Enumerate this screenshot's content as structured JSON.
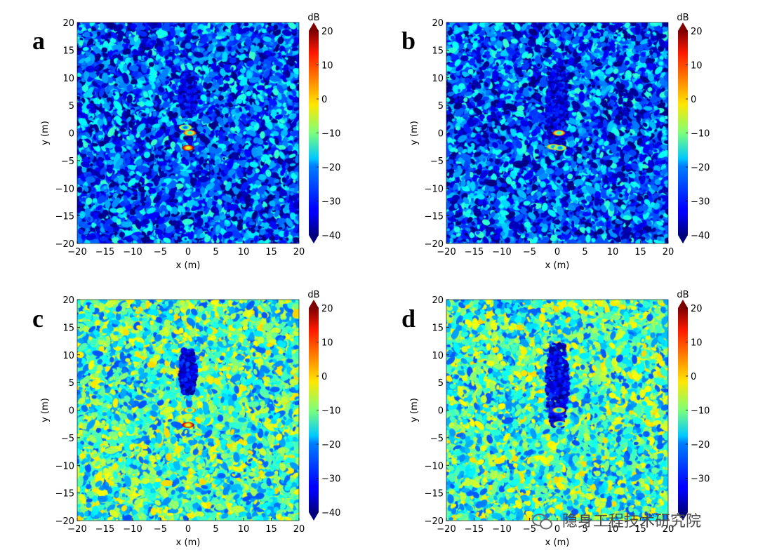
{
  "watermark": {
    "text": "隐身工程技术研究院",
    "icon": "wechat-icon"
  },
  "chart_data": [
    {
      "panel": "a",
      "type": "heatmap",
      "title": "",
      "xlabel": "x (m)",
      "ylabel": "y (m)",
      "xlim": [
        -20,
        20
      ],
      "ylim": [
        -20,
        20
      ],
      "xticks": [
        "−20",
        "−15",
        "−10",
        "−5",
        "0",
        "5",
        "10",
        "15",
        "20"
      ],
      "yticks": [
        "20",
        "15",
        "10",
        "5",
        "0",
        "−5",
        "−10",
        "−15",
        "−20"
      ],
      "colorbar": {
        "label": "dB",
        "range": [
          -40,
          20
        ],
        "ticks": [
          "20",
          "10",
          "0",
          "−10",
          "−20",
          "−30",
          "−40"
        ]
      },
      "background_level_db": -28,
      "shadow": {
        "x": [
          -1.5,
          1.5
        ],
        "y": [
          3,
          11
        ],
        "level_db": -40
      },
      "features": [
        {
          "x": 0,
          "y": -2.7,
          "db": 18
        },
        {
          "x": 0.3,
          "y": 0,
          "db": 8
        },
        {
          "x": -0.5,
          "y": 1,
          "db": -2
        }
      ]
    },
    {
      "panel": "b",
      "type": "heatmap",
      "title": "",
      "xlabel": "x (m)",
      "ylabel": "y (m)",
      "xlim": [
        -20,
        20
      ],
      "ylim": [
        -20,
        20
      ],
      "xticks": [
        "−20",
        "−15",
        "−10",
        "−5",
        "0",
        "5",
        "10",
        "15",
        "20"
      ],
      "yticks": [
        "20",
        "15",
        "10",
        "5",
        "0",
        "−5",
        "−10",
        "−15",
        "−20"
      ],
      "colorbar": {
        "label": "dB",
        "range": [
          -40,
          20
        ],
        "ticks": [
          "20",
          "10",
          "0",
          "−10",
          "−20",
          "−30",
          "−40"
        ]
      },
      "background_level_db": -28,
      "shadow": {
        "x": [
          -2,
          2
        ],
        "y": [
          -3,
          12
        ],
        "level_db": -40
      },
      "features": [
        {
          "x": 0.3,
          "y": 0,
          "db": 8
        },
        {
          "x": -0.7,
          "y": -2.5,
          "db": 2
        },
        {
          "x": 0.5,
          "y": -2.7,
          "db": 0
        }
      ]
    },
    {
      "panel": "c",
      "type": "heatmap",
      "title": "",
      "xlabel": "x (m)",
      "ylabel": "y (m)",
      "xlim": [
        -20,
        20
      ],
      "ylim": [
        -20,
        20
      ],
      "xticks": [
        "−20",
        "−15",
        "−10",
        "−5",
        "0",
        "5",
        "10",
        "15",
        "20"
      ],
      "yticks": [
        "20",
        "15",
        "10",
        "5",
        "0",
        "−5",
        "−10",
        "−15",
        "−20"
      ],
      "colorbar": {
        "label": "dB",
        "range": [
          -40,
          20
        ],
        "ticks": [
          "20",
          "10",
          "0",
          "−10",
          "−20",
          "−30",
          "−40"
        ]
      },
      "background_level_db": -14,
      "shadow": {
        "x": [
          -1.5,
          1.5
        ],
        "y": [
          3,
          11
        ],
        "level_db": -40
      },
      "features": [
        {
          "x": 0,
          "y": -2.7,
          "db": 18
        },
        {
          "x": 0.3,
          "y": 0,
          "db": 5
        }
      ]
    },
    {
      "panel": "d",
      "type": "heatmap",
      "title": "",
      "xlabel": "x (m)",
      "ylabel": "y (m)",
      "xlim": [
        -20,
        20
      ],
      "ylim": [
        -20,
        20
      ],
      "xticks": [
        "−20",
        "−15",
        "−10",
        "−5",
        "0",
        "5",
        "10",
        "15",
        "20"
      ],
      "yticks": [
        "20",
        "15",
        "10",
        "5",
        "0",
        "−5",
        "−10",
        "−15",
        "−20"
      ],
      "colorbar": {
        "label": "dB",
        "range": [
          -40,
          20
        ],
        "ticks": [
          "20",
          "10",
          "0",
          "−10",
          "−20",
          "−30"
        ]
      },
      "background_level_db": -14,
      "shadow": {
        "x": [
          -2,
          2
        ],
        "y": [
          -3,
          12
        ],
        "level_db": -40
      },
      "features": [
        {
          "x": 0.3,
          "y": 0,
          "db": 3
        },
        {
          "x": 0.5,
          "y": -2.5,
          "db": -2
        }
      ]
    }
  ]
}
